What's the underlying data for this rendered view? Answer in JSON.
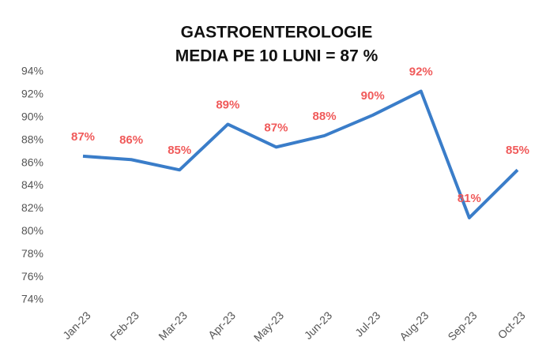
{
  "chart_data": {
    "type": "line",
    "title": "GASTROENTEROLOGIE",
    "subtitle": "MEDIA PE 10 LUNI = 87 %",
    "categories": [
      "Jan-23",
      "Feb-23",
      "Mar-23",
      "Apr-23",
      "May-23",
      "Jun-23",
      "Jul-23",
      "Aug-23",
      "Sep-23",
      "Oct-23"
    ],
    "series": [
      {
        "name": "GASTROENTEROLOGIE",
        "color": "#3a7dc9",
        "values": [
          86.6,
          86.3,
          85.4,
          89.4,
          87.4,
          88.4,
          90.2,
          92.3,
          81.2,
          85.4
        ],
        "value_labels": [
          "87%",
          "86%",
          "85%",
          "89%",
          "87%",
          "88%",
          "90%",
          "92%",
          "81%",
          "85%"
        ]
      }
    ],
    "ylim": [
      74,
      94
    ],
    "yticks": [
      {
        "value": 74,
        "label": "74%"
      },
      {
        "value": 76,
        "label": "76%"
      },
      {
        "value": 78,
        "label": "78%"
      },
      {
        "value": 80,
        "label": "80%"
      },
      {
        "value": 82,
        "label": "82%"
      },
      {
        "value": 84,
        "label": "84%"
      },
      {
        "value": 86,
        "label": "86%"
      },
      {
        "value": 88,
        "label": "88%"
      },
      {
        "value": 90,
        "label": "90%"
      },
      {
        "value": 92,
        "label": "92%"
      },
      {
        "value": 94,
        "label": "94%"
      }
    ],
    "grid": false
  }
}
